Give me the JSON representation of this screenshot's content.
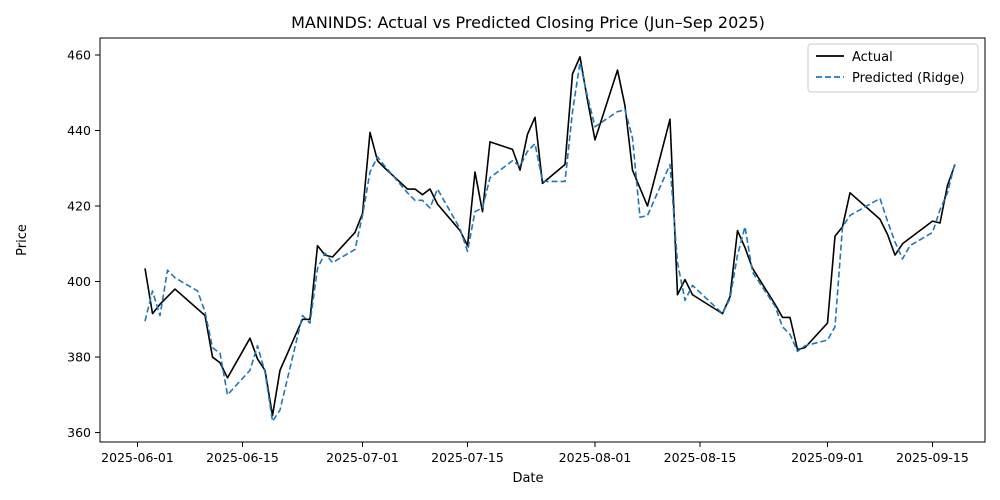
{
  "chart_data": {
    "type": "line",
    "title": "MANINDS: Actual vs Predicted Closing Price (Jun–Sep 2025)",
    "xlabel": "Date",
    "ylabel": "Price",
    "xlim": [
      "2025-05-27",
      "2025-09-22"
    ],
    "ylim": [
      357.5,
      464.5
    ],
    "x_ticks": [
      "2025-06-01",
      "2025-06-15",
      "2025-07-01",
      "2025-07-15",
      "2025-08-01",
      "2025-08-15",
      "2025-09-01",
      "2025-09-15"
    ],
    "y_ticks": [
      360,
      380,
      400,
      420,
      440,
      460
    ],
    "grid": false,
    "legend": "top-right",
    "series": [
      {
        "name": "Actual",
        "color": "#000000",
        "style": "solid",
        "points": [
          [
            "2025-06-02",
            403.5
          ],
          [
            "2025-06-03",
            391.5
          ],
          [
            "2025-06-04",
            394.0
          ],
          [
            "2025-06-06",
            398.0
          ],
          [
            "2025-06-10",
            391.0
          ],
          [
            "2025-06-11",
            380.0
          ],
          [
            "2025-06-12",
            378.5
          ],
          [
            "2025-06-13",
            374.5
          ],
          [
            "2025-06-16",
            385.0
          ],
          [
            "2025-06-17",
            379.5
          ],
          [
            "2025-06-18",
            376.5
          ],
          [
            "2025-06-19",
            364.5
          ],
          [
            "2025-06-20",
            376.5
          ],
          [
            "2025-06-23",
            390.0
          ],
          [
            "2025-06-24",
            390.0
          ],
          [
            "2025-06-25",
            409.5
          ],
          [
            "2025-06-26",
            407.0
          ],
          [
            "2025-06-27",
            406.5
          ],
          [
            "2025-06-30",
            413.0
          ],
          [
            "2025-07-01",
            418.0
          ],
          [
            "2025-07-02",
            439.5
          ],
          [
            "2025-07-03",
            432.0
          ],
          [
            "2025-07-04",
            430.0
          ],
          [
            "2025-07-07",
            424.5
          ],
          [
            "2025-07-08",
            424.5
          ],
          [
            "2025-07-09",
            423.0
          ],
          [
            "2025-07-10",
            424.5
          ],
          [
            "2025-07-11",
            420.5
          ],
          [
            "2025-07-14",
            413.5
          ],
          [
            "2025-07-15",
            409.5
          ],
          [
            "2025-07-16",
            429.0
          ],
          [
            "2025-07-17",
            418.5
          ],
          [
            "2025-07-18",
            437.0
          ],
          [
            "2025-07-21",
            435.0
          ],
          [
            "2025-07-22",
            429.5
          ],
          [
            "2025-07-23",
            439.0
          ],
          [
            "2025-07-24",
            443.5
          ],
          [
            "2025-07-25",
            426.0
          ],
          [
            "2025-07-28",
            431.0
          ],
          [
            "2025-07-29",
            455.0
          ],
          [
            "2025-07-30",
            459.5
          ],
          [
            "2025-07-31",
            448.0
          ],
          [
            "2025-08-01",
            437.5
          ],
          [
            "2025-08-04",
            456.0
          ],
          [
            "2025-08-05",
            446.5
          ],
          [
            "2025-08-06",
            429.5
          ],
          [
            "2025-08-08",
            420.0
          ],
          [
            "2025-08-11",
            443.0
          ],
          [
            "2025-08-12",
            396.5
          ],
          [
            "2025-08-13",
            400.5
          ],
          [
            "2025-08-14",
            396.5
          ],
          [
            "2025-08-18",
            391.5
          ],
          [
            "2025-08-19",
            396.0
          ],
          [
            "2025-08-20",
            413.5
          ],
          [
            "2025-08-21",
            409.0
          ],
          [
            "2025-08-22",
            403.5
          ],
          [
            "2025-08-25",
            394.0
          ],
          [
            "2025-08-26",
            390.5
          ],
          [
            "2025-08-27",
            390.5
          ],
          [
            "2025-08-28",
            382.0
          ],
          [
            "2025-08-29",
            382.5
          ],
          [
            "2025-09-01",
            389.0
          ],
          [
            "2025-09-02",
            412.0
          ],
          [
            "2025-09-03",
            414.5
          ],
          [
            "2025-09-04",
            423.5
          ],
          [
            "2025-09-08",
            416.5
          ],
          [
            "2025-09-09",
            412.5
          ],
          [
            "2025-09-10",
            407.0
          ],
          [
            "2025-09-11",
            410.0
          ],
          [
            "2025-09-15",
            416.0
          ],
          [
            "2025-09-16",
            415.5
          ],
          [
            "2025-09-17",
            425.5
          ],
          [
            "2025-09-18",
            431.0
          ]
        ]
      },
      {
        "name": "Predicted (Ridge)",
        "color": "#1f77b4",
        "style": "dashed",
        "points": [
          [
            "2025-06-02",
            389.5
          ],
          [
            "2025-06-03",
            397.5
          ],
          [
            "2025-06-04",
            391.0
          ],
          [
            "2025-06-05",
            403.0
          ],
          [
            "2025-06-06",
            401.0
          ],
          [
            "2025-06-09",
            397.5
          ],
          [
            "2025-06-10",
            392.0
          ],
          [
            "2025-06-11",
            382.5
          ],
          [
            "2025-06-12",
            381.0
          ],
          [
            "2025-06-13",
            370.0
          ],
          [
            "2025-06-16",
            376.5
          ],
          [
            "2025-06-17",
            383.0
          ],
          [
            "2025-06-18",
            376.0
          ],
          [
            "2025-06-19",
            363.0
          ],
          [
            "2025-06-20",
            366.0
          ],
          [
            "2025-06-23",
            391.0
          ],
          [
            "2025-06-24",
            389.0
          ],
          [
            "2025-06-25",
            403.5
          ],
          [
            "2025-06-26",
            407.5
          ],
          [
            "2025-06-27",
            405.0
          ],
          [
            "2025-06-30",
            408.5
          ],
          [
            "2025-07-01",
            417.5
          ],
          [
            "2025-07-02",
            429.0
          ],
          [
            "2025-07-03",
            433.0
          ],
          [
            "2025-07-04",
            430.5
          ],
          [
            "2025-07-07",
            423.5
          ],
          [
            "2025-07-08",
            421.5
          ],
          [
            "2025-07-09",
            421.5
          ],
          [
            "2025-07-10",
            419.5
          ],
          [
            "2025-07-11",
            424.5
          ],
          [
            "2025-07-14",
            414.0
          ],
          [
            "2025-07-15",
            408.0
          ],
          [
            "2025-07-16",
            418.5
          ],
          [
            "2025-07-17",
            419.5
          ],
          [
            "2025-07-18",
            427.5
          ],
          [
            "2025-07-21",
            432.0
          ],
          [
            "2025-07-22",
            430.5
          ],
          [
            "2025-07-23",
            434.5
          ],
          [
            "2025-07-24",
            436.5
          ],
          [
            "2025-07-25",
            426.5
          ],
          [
            "2025-07-28",
            426.5
          ],
          [
            "2025-07-29",
            445.0
          ],
          [
            "2025-07-30",
            458.0
          ],
          [
            "2025-07-31",
            449.0
          ],
          [
            "2025-08-01",
            441.0
          ],
          [
            "2025-08-04",
            445.0
          ],
          [
            "2025-08-05",
            445.5
          ],
          [
            "2025-08-06",
            438.0
          ],
          [
            "2025-08-07",
            417.0
          ],
          [
            "2025-08-08",
            417.5
          ],
          [
            "2025-08-11",
            431.0
          ],
          [
            "2025-08-12",
            405.0
          ],
          [
            "2025-08-13",
            395.0
          ],
          [
            "2025-08-14",
            399.0
          ],
          [
            "2025-08-18",
            391.5
          ],
          [
            "2025-08-19",
            395.5
          ],
          [
            "2025-08-20",
            407.0
          ],
          [
            "2025-08-21",
            414.5
          ],
          [
            "2025-08-22",
            402.5
          ],
          [
            "2025-08-25",
            393.5
          ],
          [
            "2025-08-26",
            388.0
          ],
          [
            "2025-08-27",
            386.0
          ],
          [
            "2025-08-28",
            381.5
          ],
          [
            "2025-08-29",
            383.0
          ],
          [
            "2025-09-01",
            384.5
          ],
          [
            "2025-09-02",
            388.0
          ],
          [
            "2025-09-03",
            414.5
          ],
          [
            "2025-09-04",
            417.5
          ],
          [
            "2025-09-08",
            422.0
          ],
          [
            "2025-09-09",
            416.0
          ],
          [
            "2025-09-10",
            410.5
          ],
          [
            "2025-09-11",
            406.0
          ],
          [
            "2025-09-12",
            409.5
          ],
          [
            "2025-09-15",
            413.0
          ],
          [
            "2025-09-16",
            419.0
          ],
          [
            "2025-09-17",
            423.5
          ],
          [
            "2025-09-18",
            431.5
          ]
        ]
      }
    ]
  }
}
